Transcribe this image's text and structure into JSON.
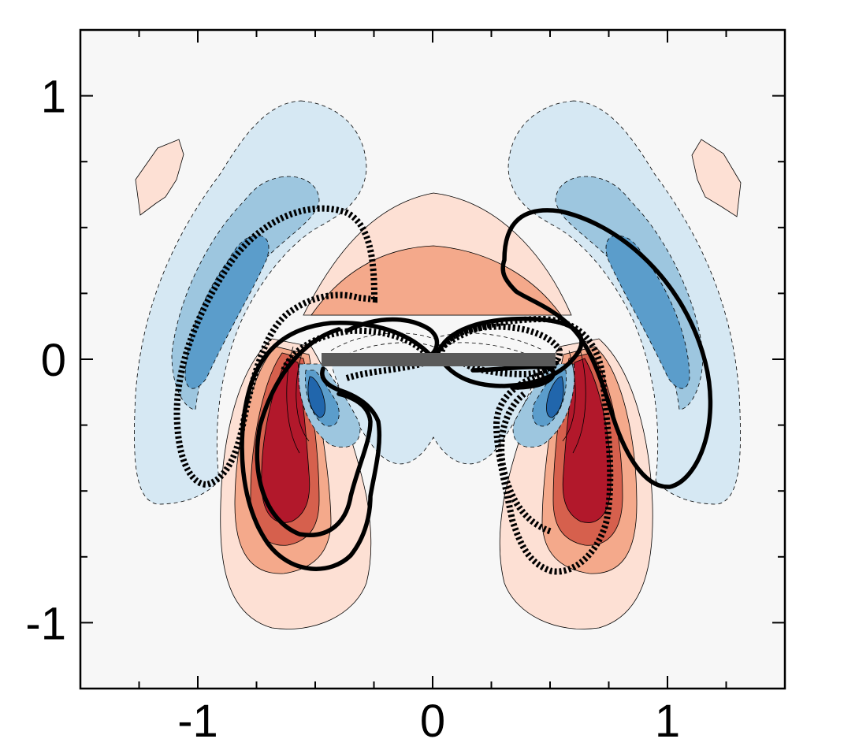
{
  "chart_data": {
    "type": "contour",
    "title": "",
    "xlabel": "",
    "ylabel": "",
    "xlim": [
      -1.5,
      1.5
    ],
    "ylim": [
      -1.25,
      1.25
    ],
    "x_ticks": [
      {
        "value": -1,
        "label": "-1"
      },
      {
        "value": 0,
        "label": "0"
      },
      {
        "value": 1,
        "label": "1"
      }
    ],
    "y_ticks": [
      {
        "value": 1,
        "label": "1"
      },
      {
        "value": 0,
        "label": "0"
      },
      {
        "value": -1,
        "label": "-1"
      }
    ],
    "grid": false,
    "colors": {
      "background": "#f7f7f7",
      "pos1": "#fde0d4",
      "pos2": "#f4a98b",
      "pos3": "#d6604d",
      "pos4": "#b2182b",
      "neg1": "#d6e8f3",
      "neg2": "#9dc6df",
      "neg3": "#5b9dcb",
      "neg4": "#2166ac",
      "plate": "#5a5a5a"
    },
    "plate": {
      "x": [
        -0.5,
        0.5
      ],
      "y": 0
    }
  }
}
